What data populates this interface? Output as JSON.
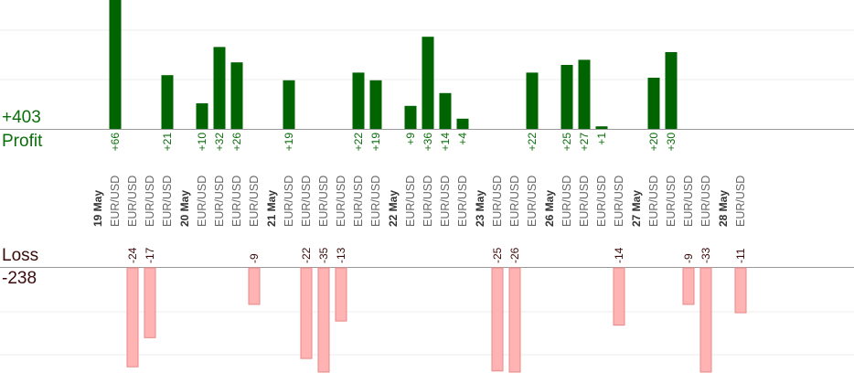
{
  "summary": {
    "profit_total": "+403",
    "profit_label": "Profit",
    "loss_label": "Loss",
    "loss_total": "-238"
  },
  "colors": {
    "profit_bar": "#006400",
    "profit_text": "#0a6e0a",
    "loss_bar": "#ffb3b3",
    "loss_border": "#e58a8a",
    "loss_text": "#3a0a0a",
    "grid": "#eeeeee",
    "axis": "#999999"
  },
  "chart_data": {
    "type": "bar",
    "grid": true,
    "columns": [
      {
        "label": "19 May",
        "kind": "date"
      },
      {
        "label": "EUR/USD",
        "kind": "pair",
        "profit": 66,
        "loss": null
      },
      {
        "label": "EUR/USD",
        "kind": "pair",
        "profit": null,
        "loss": -24
      },
      {
        "label": "EUR/USD",
        "kind": "pair",
        "profit": null,
        "loss": -17
      },
      {
        "label": "EUR/USD",
        "kind": "pair",
        "profit": 21,
        "loss": null
      },
      {
        "label": "20 May",
        "kind": "date"
      },
      {
        "label": "EUR/USD",
        "kind": "pair",
        "profit": 10,
        "loss": null
      },
      {
        "label": "EUR/USD",
        "kind": "pair",
        "profit": 32,
        "loss": null
      },
      {
        "label": "EUR/USD",
        "kind": "pair",
        "profit": 26,
        "loss": null
      },
      {
        "label": "EUR/USD",
        "kind": "pair",
        "profit": null,
        "loss": -9
      },
      {
        "label": "21 May",
        "kind": "date"
      },
      {
        "label": "EUR/USD",
        "kind": "pair",
        "profit": 19,
        "loss": null
      },
      {
        "label": "EUR/USD",
        "kind": "pair",
        "profit": null,
        "loss": -22
      },
      {
        "label": "EUR/USD",
        "kind": "pair",
        "profit": null,
        "loss": -35
      },
      {
        "label": "EUR/USD",
        "kind": "pair",
        "profit": null,
        "loss": -13
      },
      {
        "label": "EUR/USD",
        "kind": "pair",
        "profit": 22,
        "loss": null
      },
      {
        "label": "EUR/USD",
        "kind": "pair",
        "profit": 19,
        "loss": null
      },
      {
        "label": "22 May",
        "kind": "date"
      },
      {
        "label": "EUR/USD",
        "kind": "pair",
        "profit": 9,
        "loss": null
      },
      {
        "label": "EUR/USD",
        "kind": "pair",
        "profit": 36,
        "loss": null
      },
      {
        "label": "EUR/USD",
        "kind": "pair",
        "profit": 14,
        "loss": null
      },
      {
        "label": "EUR/USD",
        "kind": "pair",
        "profit": 4,
        "loss": null
      },
      {
        "label": "23 May",
        "kind": "date"
      },
      {
        "label": "EUR/USD",
        "kind": "pair",
        "profit": null,
        "loss": -25
      },
      {
        "label": "EUR/USD",
        "kind": "pair",
        "profit": null,
        "loss": -26
      },
      {
        "label": "EUR/USD",
        "kind": "pair",
        "profit": 22,
        "loss": null
      },
      {
        "label": "26 May",
        "kind": "date"
      },
      {
        "label": "EUR/USD",
        "kind": "pair",
        "profit": 25,
        "loss": null
      },
      {
        "label": "EUR/USD",
        "kind": "pair",
        "profit": 27,
        "loss": null
      },
      {
        "label": "EUR/USD",
        "kind": "pair",
        "profit": 1,
        "loss": null
      },
      {
        "label": "EUR/USD",
        "kind": "pair",
        "profit": null,
        "loss": -14
      },
      {
        "label": "27 May",
        "kind": "date"
      },
      {
        "label": "EUR/USD",
        "kind": "pair",
        "profit": 20,
        "loss": null
      },
      {
        "label": "EUR/USD",
        "kind": "pair",
        "profit": 30,
        "loss": null
      },
      {
        "label": "EUR/USD",
        "kind": "pair",
        "profit": null,
        "loss": -9
      },
      {
        "label": "EUR/USD",
        "kind": "pair",
        "profit": null,
        "loss": -33
      },
      {
        "label": "28 May",
        "kind": "date"
      },
      {
        "label": "EUR/USD",
        "kind": "pair",
        "profit": null,
        "loss": -11
      }
    ]
  }
}
